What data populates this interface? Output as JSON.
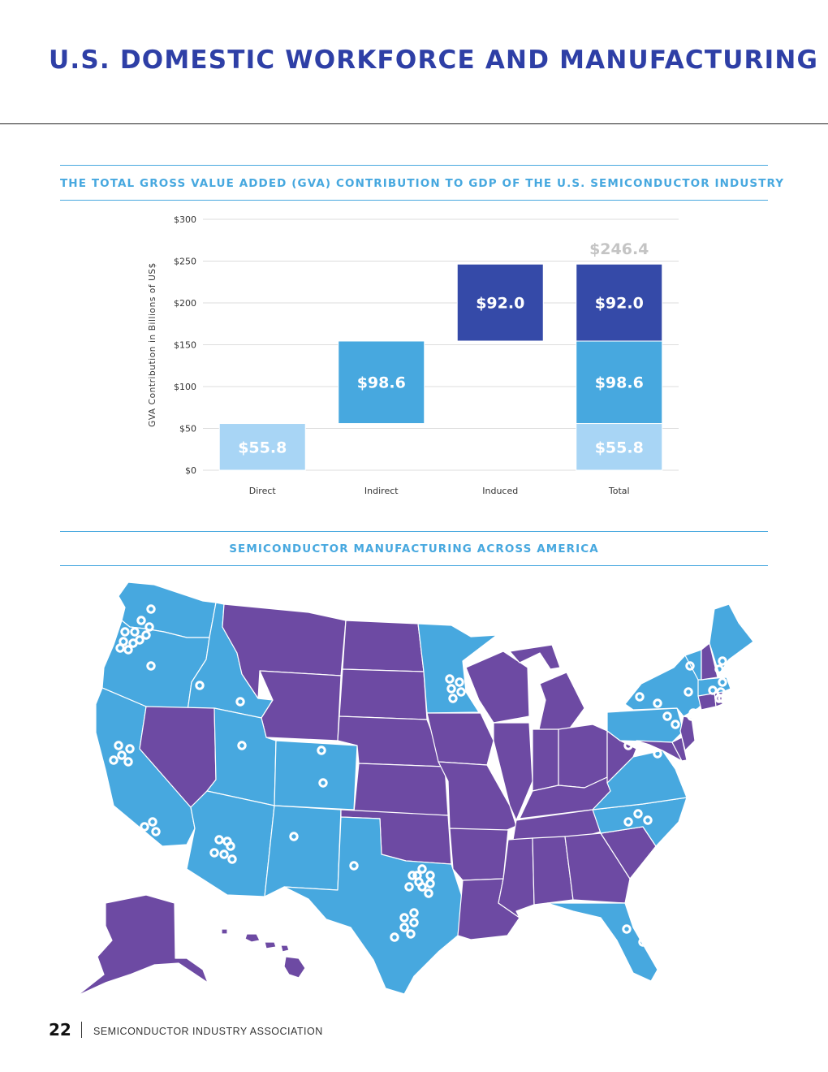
{
  "page": {
    "title": "U.S. DOMESTIC WORKFORCE AND MANUFACTURING",
    "footer": {
      "page_number": "22",
      "organization": "SEMICONDUCTOR INDUSTRY ASSOCIATION"
    }
  },
  "sections": {
    "gva_heading": "THE TOTAL GROSS VALUE ADDED (GVA) CONTRIBUTION TO GDP OF THE U.S. SEMICONDUCTOR INDUSTRY",
    "map_heading": "SEMICONDUCTOR MANUFACTURING ACROSS AMERICA"
  },
  "chart_data": {
    "type": "bar",
    "stacking": "waterfall",
    "ylabel": "GVA Contribution in Billions of US$",
    "ylim": [
      0,
      300
    ],
    "yticks": [
      0,
      50,
      100,
      150,
      200,
      250,
      300
    ],
    "ytick_labels": [
      "$0",
      "$50",
      "$100",
      "$150",
      "$200",
      "$250",
      "$300"
    ],
    "categories": [
      "Direct",
      "Indirect",
      "Induced",
      "Total"
    ],
    "grid": true,
    "bars": [
      {
        "category": "Direct",
        "segments": [
          {
            "component": "Direct",
            "base": 0,
            "value": 55.8,
            "label": "$55.8"
          }
        ]
      },
      {
        "category": "Indirect",
        "segments": [
          {
            "component": "Indirect",
            "base": 55.8,
            "value": 98.6,
            "label": "$98.6"
          }
        ]
      },
      {
        "category": "Induced",
        "segments": [
          {
            "component": "Induced",
            "base": 154.4,
            "value": 92.0,
            "label": "$92.0"
          }
        ]
      },
      {
        "category": "Total",
        "total_label": "$246.4",
        "total": 246.4,
        "segments": [
          {
            "component": "Direct",
            "base": 0,
            "value": 55.8,
            "label": "$55.8"
          },
          {
            "component": "Indirect",
            "base": 55.8,
            "value": 98.6,
            "label": "$98.6"
          },
          {
            "component": "Induced",
            "base": 154.4,
            "value": 92.0,
            "label": "$92.0"
          }
        ]
      }
    ],
    "colors": {
      "Direct": "#a8d5f5",
      "Indirect": "#47a8df",
      "Induced": "#354aa8",
      "total_label": "#c4c4c4"
    }
  },
  "map": {
    "colors": {
      "with_facilities": "#47a8df",
      "without_facilities": "#6d4aa3",
      "marker": "#ffffff",
      "border": "#ffffff"
    }
  }
}
